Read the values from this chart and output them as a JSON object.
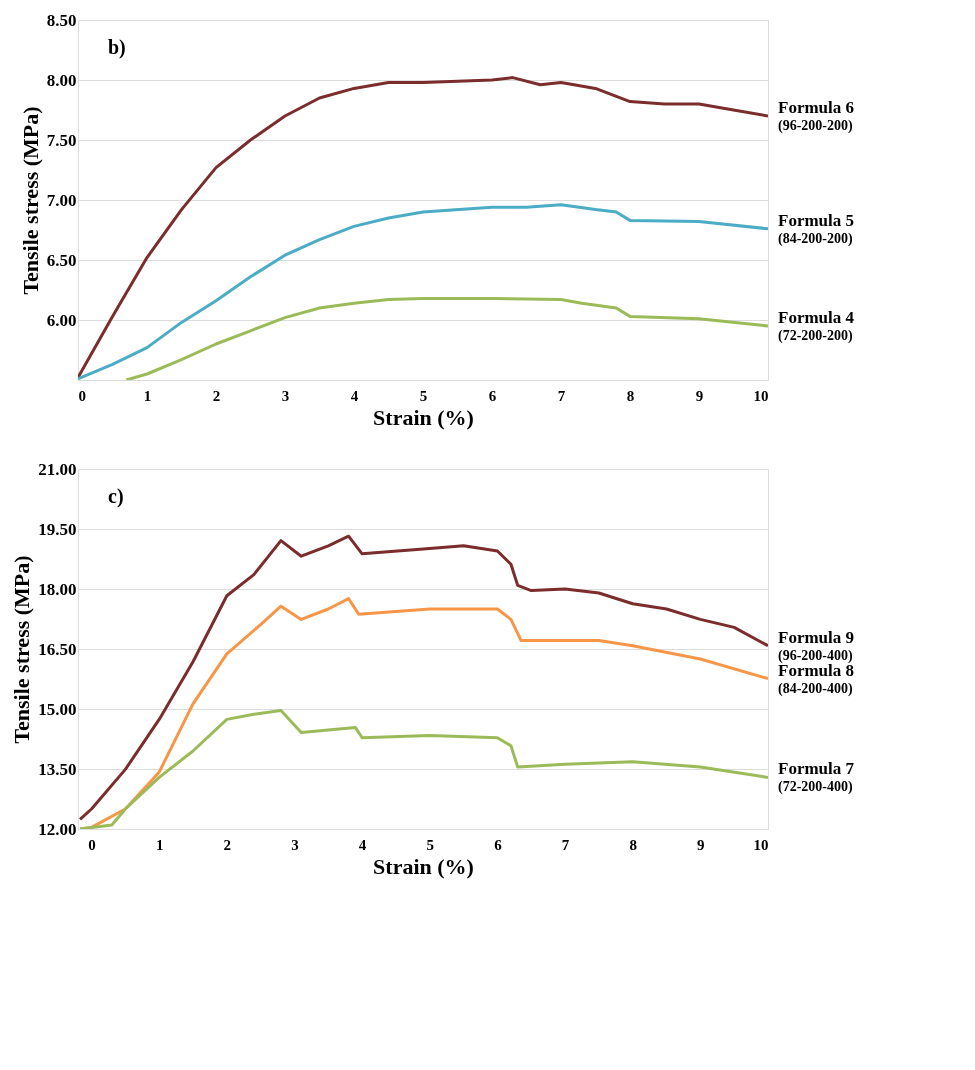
{
  "chart_data": [
    {
      "type": "line",
      "title": "b)",
      "xlabel": "Strain (%)",
      "ylabel": "Tensile stress (MPa)",
      "xlim": [
        0,
        10
      ],
      "ylim": [
        5.5,
        8.5
      ],
      "xticks": [
        0,
        1,
        2,
        3,
        4,
        5,
        6,
        7,
        8,
        9,
        10
      ],
      "yticks": [
        {
          "value": 5.5,
          "label": null
        },
        {
          "value": 6,
          "label": "6.00"
        },
        {
          "value": 6.5,
          "label": "6.50"
        },
        {
          "value": 7,
          "label": "7.00"
        },
        {
          "value": 7.5,
          "label": "7.50"
        },
        {
          "value": 8,
          "label": "8.00"
        },
        {
          "value": 8.5,
          "label": "8.50"
        }
      ],
      "grid": "y",
      "marker": "none",
      "line_style": "solid",
      "annotations": [
        "(96-200-200)",
        "(84-200-200)",
        "(72-200-200)"
      ],
      "series": [
        {
          "name": "Formula 6",
          "color": "#7b2c2c",
          "x": [
            0,
            0.5,
            1,
            1.5,
            2,
            2.5,
            3,
            3.5,
            4,
            4.5,
            5,
            6,
            6.3,
            6.7,
            7,
            7.5,
            8,
            8.5,
            9,
            9.5,
            10
          ],
          "values": [
            5.52,
            6.03,
            6.52,
            6.92,
            7.27,
            7.5,
            7.7,
            7.85,
            7.93,
            7.98,
            7.98,
            8.0,
            8.02,
            7.96,
            7.98,
            7.93,
            7.82,
            7.8,
            7.8,
            7.75,
            7.7
          ]
        },
        {
          "name": "Formula 5",
          "color": "#4bacc6",
          "x": [
            0,
            0.5,
            1,
            1.5,
            2,
            2.5,
            3,
            3.5,
            4,
            4.5,
            5,
            6,
            6.5,
            7,
            7.5,
            7.8,
            8,
            9,
            10
          ],
          "values": [
            5.51,
            5.63,
            5.77,
            5.98,
            6.16,
            6.36,
            6.54,
            6.67,
            6.78,
            6.85,
            6.9,
            6.94,
            6.94,
            6.96,
            6.92,
            6.9,
            6.83,
            6.82,
            6.76
          ]
        },
        {
          "name": "Formula 4",
          "color": "#9bbb59",
          "x": [
            0.7,
            1,
            1.5,
            2,
            2.5,
            3,
            3.5,
            4,
            4.5,
            5,
            6,
            7,
            7.3,
            7.8,
            8,
            9,
            10
          ],
          "values": [
            5.5,
            5.55,
            5.67,
            5.8,
            5.91,
            6.02,
            6.1,
            6.14,
            6.17,
            6.18,
            6.18,
            6.17,
            6.14,
            6.1,
            6.03,
            6.01,
            5.95
          ]
        }
      ]
    },
    {
      "type": "line",
      "title": "c)",
      "xlabel": "Strain (%)",
      "ylabel": "Tensile stress (MPa)",
      "xlim": [
        -0.2,
        10
      ],
      "ylim": [
        12,
        21
      ],
      "xticks": [
        0,
        1,
        2,
        3,
        4,
        5,
        6,
        7,
        8,
        9,
        10
      ],
      "yticks": [
        {
          "value": 12,
          "label": "12.00"
        },
        {
          "value": 13.5,
          "label": "13.50"
        },
        {
          "value": 15,
          "label": "15.00"
        },
        {
          "value": 16.5,
          "label": "16.50"
        },
        {
          "value": 18,
          "label": "18.00"
        },
        {
          "value": 19.5,
          "label": "19.50"
        },
        {
          "value": 21,
          "label": "21.00"
        }
      ],
      "grid": "y",
      "marker": "none",
      "line_style": "solid",
      "annotations": [
        "(96-200-400)",
        "(84-200-400)",
        "(72-200-400)"
      ],
      "series": [
        {
          "name": "Formula 9",
          "color": "#7b2c2c",
          "x": [
            -0.17,
            0,
            0.5,
            1,
            1.5,
            2,
            2.4,
            2.8,
            3.1,
            3.5,
            3.8,
            4,
            5,
            5.5,
            6,
            6.2,
            6.3,
            6.5,
            7,
            7.5,
            8,
            8.5,
            9,
            9.5,
            10
          ],
          "values": [
            12.24,
            12.5,
            13.49,
            14.74,
            16.18,
            17.83,
            18.36,
            19.21,
            18.82,
            19.08,
            19.32,
            18.88,
            19.01,
            19.08,
            18.95,
            18.62,
            18.09,
            17.96,
            18.0,
            17.9,
            17.63,
            17.5,
            17.24,
            17.04,
            16.58
          ]
        },
        {
          "name": "Formula 8",
          "color": "#f79646",
          "x": [
            -0.17,
            0,
            0.5,
            1,
            1.5,
            2,
            2.5,
            2.8,
            3.1,
            3.5,
            3.8,
            3.95,
            5,
            6,
            6.2,
            6.35,
            7,
            7.5,
            8,
            9,
            10
          ],
          "values": [
            12.0,
            12.04,
            12.5,
            13.42,
            15.13,
            16.38,
            17.11,
            17.57,
            17.24,
            17.5,
            17.76,
            17.37,
            17.5,
            17.5,
            17.24,
            16.71,
            16.71,
            16.71,
            16.58,
            16.25,
            15.76
          ]
        },
        {
          "name": "Formula 7",
          "color": "#9bbb59",
          "x": [
            -0.17,
            0.3,
            0.5,
            1,
            1.5,
            2,
            2.4,
            2.8,
            3.1,
            3.9,
            4,
            5,
            6,
            6.2,
            6.3,
            7,
            8,
            9,
            10
          ],
          "values": [
            12.0,
            12.1,
            12.5,
            13.29,
            13.95,
            14.74,
            14.87,
            14.96,
            14.41,
            14.54,
            14.28,
            14.34,
            14.28,
            14.08,
            13.55,
            13.62,
            13.68,
            13.55,
            13.29
          ]
        }
      ]
    }
  ]
}
